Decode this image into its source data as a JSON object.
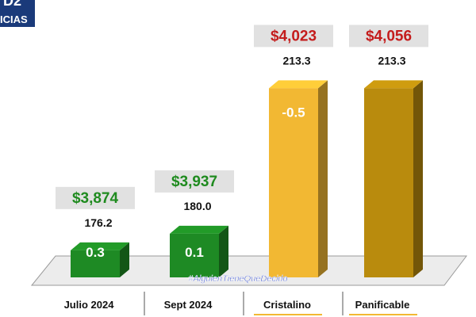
{
  "logo": {
    "line1": "D2",
    "line2": "ICIAS"
  },
  "watermark": "#AlguienTieneQueDecirlo",
  "colors": {
    "green": "#1e8a24",
    "gold_light": "#f2b833",
    "gold_dark": "#b98b0d",
    "price_green": "#1f8b1f",
    "price_red": "#c41c1c",
    "price_box": "#e1e1e1"
  },
  "chart_data": {
    "type": "bar",
    "title": "",
    "xlabel": "",
    "ylabel": "",
    "categories": [
      "Julio 2024",
      "Sept 2024",
      "Cristalino",
      "Panificable"
    ],
    "values": [
      176.2,
      180.0,
      213.3,
      213.3
    ],
    "value_labels": [
      "176.2",
      "180.0",
      "213.3",
      "213.3"
    ],
    "prices": [
      "$3,874",
      "$3,937",
      "$4,023",
      "$4,056"
    ],
    "variations": [
      "0.3",
      "0.1",
      "-0.5",
      ""
    ],
    "bar_colors": [
      "#1e8a24",
      "#1e8a24",
      "#f2b833",
      "#b98b0d"
    ],
    "price_colors": [
      "#1f8b1f",
      "#1f8b1f",
      "#c41c1c",
      "#c41c1c"
    ],
    "underlined_categories": [
      false,
      false,
      true,
      true
    ],
    "ylim": [
      170,
      215
    ],
    "grid": false,
    "legend": "none"
  }
}
